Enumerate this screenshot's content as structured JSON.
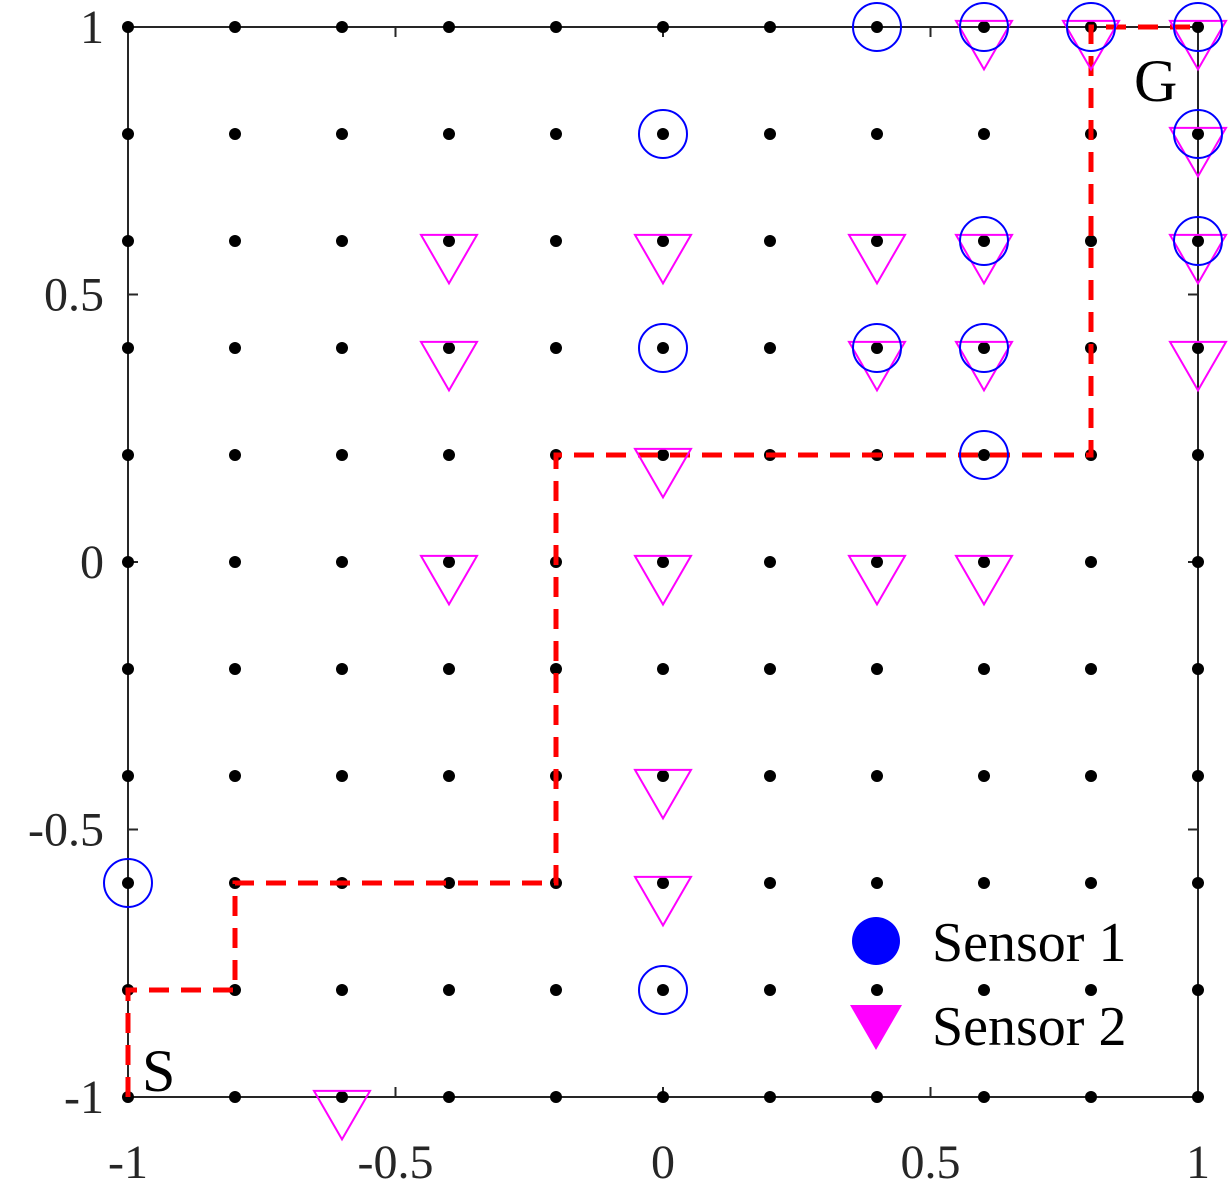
{
  "chart_data": {
    "type": "scatter",
    "title": "",
    "xlabel": "",
    "ylabel": "",
    "xlim": [
      -1,
      1
    ],
    "ylim": [
      -1,
      1
    ],
    "xticks": [
      -1,
      -0.5,
      0,
      0.5,
      1
    ],
    "xtick_labels": [
      "-1",
      "-0.5",
      "0",
      "0.5",
      "1"
    ],
    "yticks": [
      -1,
      -0.5,
      0,
      0.5,
      1
    ],
    "ytick_labels": [
      "-1",
      "-0.5",
      "0",
      "0.5",
      "1"
    ],
    "grid": false,
    "grid_points": {
      "x": [
        -1,
        -0.8,
        -0.6,
        -0.4,
        -0.2,
        0,
        0.2,
        0.4,
        0.6,
        0.8,
        1
      ],
      "y": [
        -1,
        -0.8,
        -0.6,
        -0.4,
        -0.2,
        0,
        0.2,
        0.4,
        0.6,
        0.8,
        1
      ]
    },
    "series": [
      {
        "name": "Sensor 1",
        "marker": "circle",
        "points": [
          [
            0.4,
            1
          ],
          [
            0.6,
            1
          ],
          [
            0.8,
            1
          ],
          [
            1,
            1
          ],
          [
            0,
            0.8
          ],
          [
            1,
            0.8
          ],
          [
            0.6,
            0.6
          ],
          [
            1,
            0.6
          ],
          [
            0,
            0.4
          ],
          [
            0.4,
            0.4
          ],
          [
            0.6,
            0.4
          ],
          [
            0.6,
            0.2
          ],
          [
            -1,
            -0.6
          ],
          [
            0,
            -0.8
          ]
        ]
      },
      {
        "name": "Sensor 2",
        "marker": "triangle-down",
        "points": [
          [
            0.6,
            1
          ],
          [
            0.8,
            1
          ],
          [
            1,
            1
          ],
          [
            1,
            0.8
          ],
          [
            -0.4,
            0.6
          ],
          [
            0,
            0.6
          ],
          [
            0.4,
            0.6
          ],
          [
            0.6,
            0.6
          ],
          [
            1,
            0.6
          ],
          [
            -0.4,
            0.4
          ],
          [
            0.4,
            0.4
          ],
          [
            0.6,
            0.4
          ],
          [
            1,
            0.4
          ],
          [
            0,
            0.2
          ],
          [
            -0.4,
            0
          ],
          [
            0,
            0
          ],
          [
            0.4,
            0
          ],
          [
            0.6,
            0
          ],
          [
            0,
            -0.4
          ],
          [
            0,
            -0.6
          ],
          [
            -0.6,
            -1
          ]
        ]
      }
    ],
    "path": {
      "style": "dashed",
      "points": [
        [
          -1,
          -1
        ],
        [
          -1,
          -0.8
        ],
        [
          -0.8,
          -0.8
        ],
        [
          -0.8,
          -0.6
        ],
        [
          -0.2,
          -0.6
        ],
        [
          -0.2,
          0.2
        ],
        [
          0.8,
          0.2
        ],
        [
          0.8,
          1
        ],
        [
          1,
          1
        ]
      ]
    },
    "annotations": [
      {
        "text": "S",
        "x": -1,
        "y": -1
      },
      {
        "text": "G",
        "x": 1,
        "y": 1
      }
    ],
    "legend": {
      "position": "bottom-right",
      "entries": [
        {
          "label": "Sensor 1",
          "marker": "circle"
        },
        {
          "label": "Sensor 2",
          "marker": "triangle-down"
        }
      ]
    }
  },
  "colors": {
    "axis": "#262626",
    "grid_point": "#000000",
    "sensor1": "#0000ff",
    "sensor2": "#ff00ff",
    "path": "#ff0000"
  }
}
